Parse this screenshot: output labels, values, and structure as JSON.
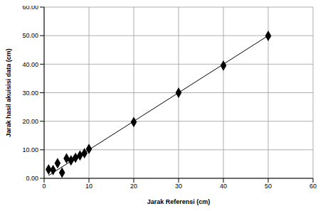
{
  "chart_data": {
    "type": "scatter",
    "x_label": "Jarak Referensi (cm)",
    "y_label": "Jarak hasil akuisisi data (cm)",
    "x": [
      1,
      2,
      3,
      4,
      5,
      6,
      7,
      8,
      9,
      10,
      20,
      30,
      40,
      50
    ],
    "values": [
      3.1,
      2.9,
      5.3,
      2.0,
      7.0,
      6.3,
      7.2,
      8.0,
      8.8,
      10.3,
      19.7,
      30.0,
      39.5,
      49.9
    ],
    "color": "#000000",
    "marker": "diamond",
    "trendline": {
      "x": [
        1,
        50
      ],
      "values": [
        1,
        50
      ],
      "color": "#000000",
      "line_style": "solid"
    },
    "xlim": [
      0,
      60
    ],
    "xticks": [
      0,
      10,
      20,
      30,
      40,
      50,
      60
    ],
    "ylim": [
      0,
      60
    ],
    "yticks": [
      {
        "value": 0,
        "label": "0.00"
      },
      {
        "value": 10,
        "label": "10.00"
      },
      {
        "value": 20,
        "label": "20.00"
      },
      {
        "value": 30,
        "label": "30.00"
      },
      {
        "value": 40,
        "label": "40.00"
      },
      {
        "value": 50,
        "label": "50.00"
      },
      {
        "value": 60,
        "label": "60.00"
      }
    ],
    "grid": true
  }
}
